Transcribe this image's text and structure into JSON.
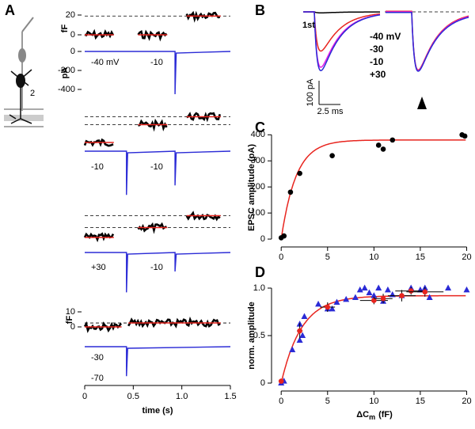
{
  "panel_labels": [
    "A",
    "B",
    "C",
    "D"
  ],
  "cartoon_label": "2",
  "chart_data": [
    {
      "type": "traces",
      "xlabel": "time (s)",
      "xlim": [
        0,
        1.5
      ],
      "xticks": [
        0,
        0.5,
        {
          "value": 1,
          "label": "1.0"
        },
        1.5
      ],
      "trace_color": "#000000",
      "fit_color": "#e8251f",
      "current_color": "#2b2bd6",
      "rows": [
        {
          "cm_unit": "fF",
          "current_unit": "pA",
          "cm_yticks": [
            20,
            0
          ],
          "current_yticks": [
            0,
            -200,
            -400
          ],
          "labels": [
            "-40 mV",
            "-10"
          ],
          "steps": [
            {
              "t": [
                0,
                0.3
              ],
              "cm": 0
            },
            {
              "t": [
                0.55,
                0.85
              ],
              "cm": 0
            },
            {
              "t": [
                1.05,
                1.4
              ],
              "cm": 19
            }
          ],
          "spikes": [
            {
              "t": 0.93,
              "amplitude": -450
            }
          ]
        },
        {
          "labels": [
            "-10",
            "-10"
          ],
          "steps": [
            {
              "t": [
                0,
                0.3
              ],
              "cm": 0
            },
            {
              "t": [
                0.55,
                0.85
              ],
              "cm": 18
            },
            {
              "t": [
                1.05,
                1.4
              ],
              "cm": 26
            }
          ],
          "spikes": [
            {
              "t": 0.43,
              "amplitude": -460
            },
            {
              "t": 0.93,
              "amplitude": -360
            }
          ]
        },
        {
          "labels": [
            "+30",
            "-10"
          ],
          "steps": [
            {
              "t": [
                0,
                0.3
              ],
              "cm": 0
            },
            {
              "t": [
                0.55,
                0.85
              ],
              "cm": 10
            },
            {
              "t": [
                1.05,
                1.4
              ],
              "cm": 22
            }
          ],
          "spikes": [
            {
              "t": 0.43,
              "amplitude": -420
            },
            {
              "t": 0.93,
              "amplitude": -200
            }
          ]
        },
        {
          "cm_unit": "fF",
          "cm_yticks": [
            10,
            0
          ],
          "labels": [
            "-30",
            "-70"
          ],
          "steps": [
            {
              "t": [
                0,
                0.38
              ],
              "cm": 0
            },
            {
              "t": [
                0.45,
                1.4
              ],
              "cm": 2.6
            }
          ],
          "spikes": [
            {
              "t": 0.43,
              "amplitude": -310
            }
          ]
        }
      ]
    },
    {
      "type": "epsc",
      "annotation": "1st",
      "series": [
        {
          "name": "-40 mV",
          "color": "#000000",
          "peak": 5
        },
        {
          "name": "-30",
          "color": "#e8251f",
          "peak": 200
        },
        {
          "name": "-10",
          "color": "#e61ee6",
          "peak": 283
        },
        {
          "name": "+30",
          "color": "#2b2bd6",
          "peak": 300
        }
      ],
      "scale_bars": [
        {
          "value": 100,
          "label": "100 pA"
        },
        {
          "value": 2.5,
          "label": "2.5 ms"
        }
      ]
    },
    {
      "type": "scatter",
      "ylabel": "EPSC amplitude (pA)",
      "xlim": [
        -0.7,
        20.3
      ],
      "ylim": [
        -15,
        410
      ],
      "xticks": [
        0,
        5,
        10,
        15,
        20
      ],
      "yticks": [
        0,
        100,
        200,
        300,
        400
      ],
      "series": [
        {
          "color": "#000000",
          "marker": "circle",
          "x": [
            0,
            0.3,
            1,
            2,
            5.5,
            10.5,
            11,
            12,
            19.5,
            19.8
          ],
          "values": [
            5,
            12,
            180,
            252,
            320,
            360,
            345,
            380,
            400,
            395
          ]
        }
      ],
      "fit": {
        "color": "#e8251f",
        "amplitude": 380,
        "tau": 1.6
      }
    },
    {
      "type": "scatter",
      "ylabel": "norm. amplitude",
      "xlabel": {
        "main": "ΔC",
        "sub": "m",
        "unit": "(fF)"
      },
      "xlim": [
        -0.7,
        20.3
      ],
      "ylim": [
        -0.05,
        1.05
      ],
      "xticks": [
        0,
        5,
        10,
        15,
        20
      ],
      "yticks": [
        0,
        0.5,
        {
          "value": 1,
          "label": "1.0"
        }
      ],
      "series": [
        {
          "color": "#2b2bd6",
          "marker": "triangle",
          "x": [
            0,
            0.3,
            1.2,
            2,
            2.3,
            2,
            2.5,
            4,
            5,
            5.5,
            6,
            7,
            8,
            8.5,
            9,
            9.5,
            10,
            10.5,
            11,
            11.5,
            12,
            13,
            14,
            15,
            15.5,
            16,
            18,
            20
          ],
          "values": [
            0,
            0.02,
            0.35,
            0.45,
            0.5,
            0.62,
            0.7,
            0.83,
            0.78,
            0.78,
            0.85,
            0.88,
            0.9,
            0.98,
            1,
            0.95,
            0.92,
            1,
            0.86,
            0.98,
            0.93,
            0.92,
            1,
            0.98,
            1,
            0.9,
            1,
            0.98
          ]
        },
        {
          "color": "#e8251f",
          "marker": "circle",
          "x": [
            0,
            2,
            5,
            10,
            11,
            13,
            14,
            15.5
          ],
          "values": [
            0.02,
            0.55,
            0.8,
            0.87,
            0.89,
            0.92,
            0.97,
            0.96
          ],
          "xerr": [
            0.1,
            0.3,
            0.8,
            1.5,
            1,
            1.5,
            1.7,
            2
          ],
          "yerr": [
            0.01,
            0.08,
            0.05,
            0.04,
            0.05,
            0.06,
            0.04,
            0.05
          ]
        }
      ],
      "fit": {
        "color": "#e8251f",
        "amplitude": 0.92,
        "tau": 2.2
      }
    }
  ]
}
